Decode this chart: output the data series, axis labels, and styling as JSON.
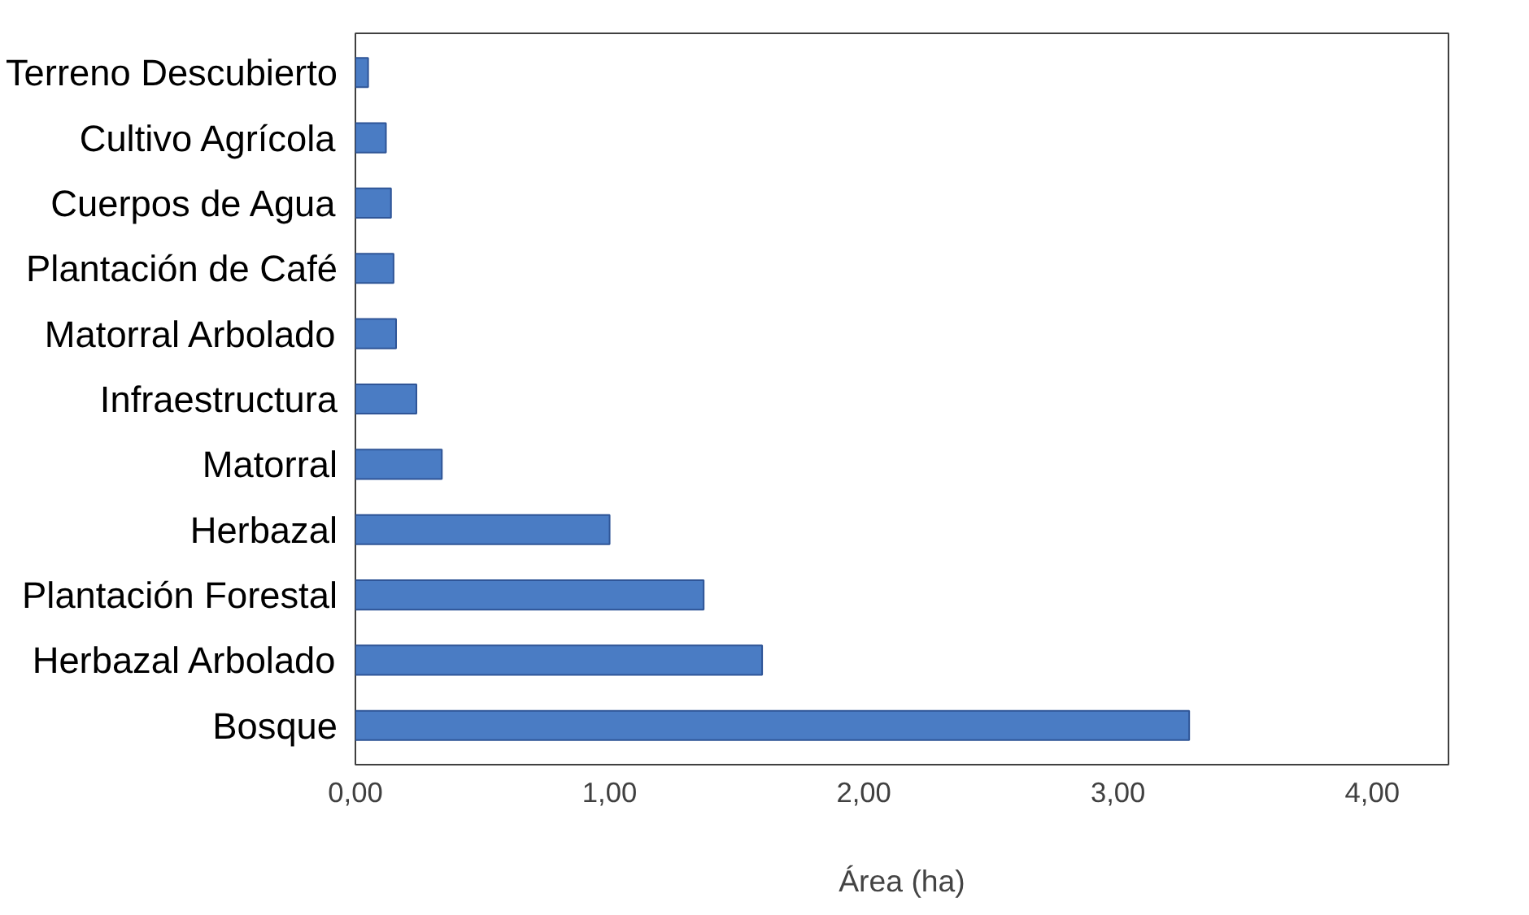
{
  "chart_data": {
    "type": "bar",
    "orientation": "horizontal",
    "xlabel": "Área (ha)",
    "categories": [
      "Terreno Descubierto",
      "Cultivo Agrícola",
      "Cuerpos de Agua",
      "Plantación de Café",
      "Matorral Arbolado",
      "Infraestructura",
      "Matorral",
      "Herbazal",
      "Plantación Forestal",
      "Herbazal Arbolado",
      "Bosque"
    ],
    "values": [
      0.05,
      0.12,
      0.14,
      0.15,
      0.16,
      0.24,
      0.34,
      1.0,
      1.37,
      1.6,
      3.28
    ],
    "color": "#4a7cc4",
    "xlim": [
      0,
      4.3
    ],
    "xticks": [
      {
        "value": 0,
        "label": "0,00"
      },
      {
        "value": 1,
        "label": "1,00"
      },
      {
        "value": 2,
        "label": "2,00"
      },
      {
        "value": 3,
        "label": "3,00"
      },
      {
        "value": 4,
        "label": "4,00"
      }
    ],
    "grid": false
  }
}
